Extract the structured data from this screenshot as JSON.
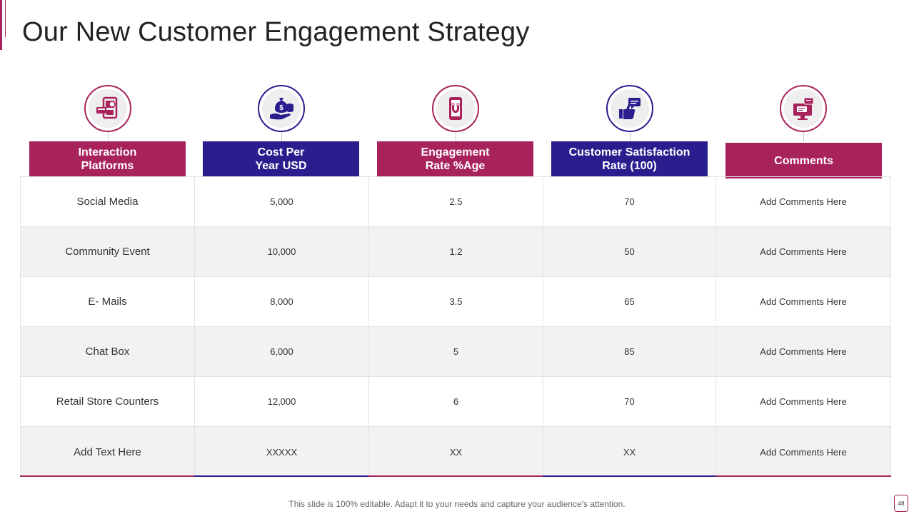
{
  "slide": {
    "title": "Our New Customer Engagement Strategy",
    "footer": "This slide is 100% editable. Adapt it to your needs and capture your audience's attention.",
    "page_number": "48"
  },
  "colors": {
    "pink": "#a8235c",
    "navy": "#2a1d8e"
  },
  "columns": [
    {
      "label": "Interaction\nPlatforms",
      "icon": "tablet-card-payment-icon",
      "color": "pink"
    },
    {
      "label": "Cost  Per\nYear USD",
      "icon": "money-bag-hand-icon",
      "color": "navy"
    },
    {
      "label": "Engagement\nRate %Age",
      "icon": "magnet-phone-icon",
      "color": "pink"
    },
    {
      "label": "Customer Satisfaction\nRate (100)",
      "icon": "thumbs-up-chat-icon",
      "color": "navy"
    },
    {
      "label": "Comments",
      "icon": "monitor-chat-icon",
      "color": "pink"
    }
  ],
  "rows": [
    [
      "Social Media",
      "5,000",
      "2.5",
      "70",
      "Add Comments Here"
    ],
    [
      "Community Event",
      "10,000",
      "1.2",
      "50",
      "Add Comments Here"
    ],
    [
      "E- Mails",
      "8,000",
      "3.5",
      "65",
      "Add Comments Here"
    ],
    [
      "Chat Box",
      "6,000",
      "5",
      "85",
      "Add Comments Here"
    ],
    [
      "Retail Store Counters",
      "12,000",
      "6",
      "70",
      "Add Comments Here"
    ],
    [
      "Add Text Here",
      "XXXXX",
      "XX",
      "XX",
      "Add Comments Here"
    ]
  ]
}
